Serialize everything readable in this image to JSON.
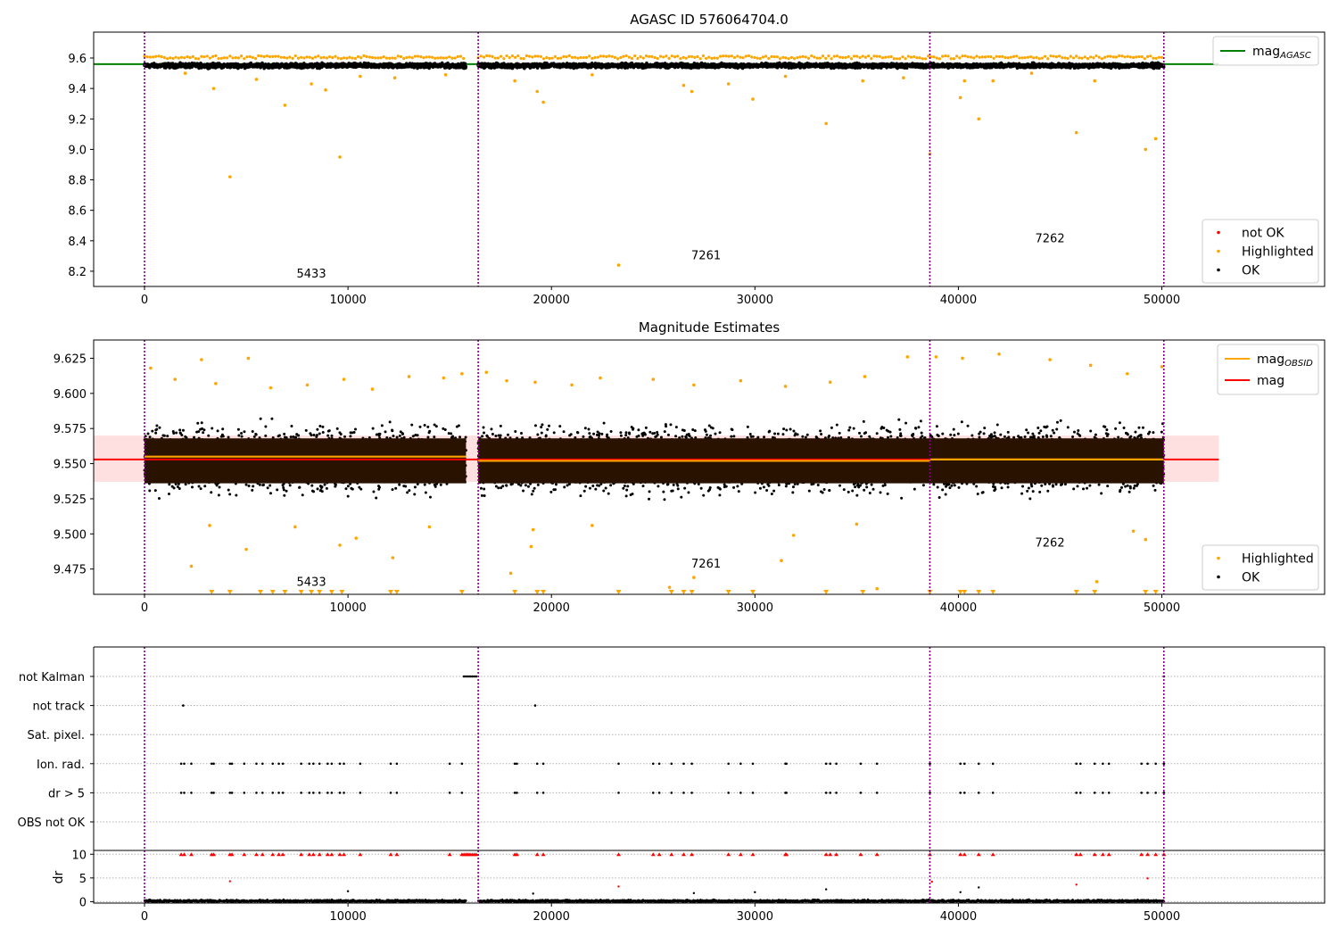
{
  "chart_data": [
    {
      "type": "scatter",
      "title": "AGASC ID 576064704.0",
      "xlim": [
        -2500,
        58000
      ],
      "ylim": [
        8.1,
        9.77
      ],
      "x_ticks": [
        0,
        10000,
        20000,
        30000,
        40000,
        50000
      ],
      "y_ticks": [
        8.2,
        8.4,
        8.6,
        8.8,
        9.0,
        9.2,
        9.4,
        9.6
      ],
      "y_decimals": 1,
      "grid": false,
      "obs_boundaries": [
        0,
        16400,
        38600,
        50100
      ],
      "obs_labels": [
        {
          "text": "5433",
          "x": 8200,
          "y": 8.16
        },
        {
          "text": "7261",
          "x": 27600,
          "y": 8.28
        },
        {
          "text": "7262",
          "x": 44500,
          "y": 8.39
        }
      ],
      "hlines": [
        {
          "name": "mag_AGASC",
          "y": 9.56,
          "x0": -2500,
          "x1": 52800,
          "color": "#008000"
        }
      ],
      "series": [
        {
          "name": "not OK",
          "color": "#ff0000",
          "x_ranges": [],
          "y_center": 9.55,
          "y_spread": 0.0
        },
        {
          "name": "Highlighted",
          "color": "#ffa500",
          "points": [
            [
              4200,
              8.82
            ],
            [
              9600,
              8.95
            ],
            [
              6900,
              9.29
            ],
            [
              3400,
              9.4
            ],
            [
              8200,
              9.43
            ],
            [
              8900,
              9.39
            ],
            [
              2000,
              9.5
            ],
            [
              5500,
              9.46
            ],
            [
              10600,
              9.48
            ],
            [
              12300,
              9.47
            ],
            [
              14800,
              9.49
            ],
            [
              19300,
              9.38
            ],
            [
              19600,
              9.31
            ],
            [
              23300,
              8.24
            ],
            [
              26500,
              9.42
            ],
            [
              26900,
              9.38
            ],
            [
              28700,
              9.43
            ],
            [
              29900,
              9.33
            ],
            [
              33500,
              9.17
            ],
            [
              35300,
              9.45
            ],
            [
              38600,
              8.97
            ],
            [
              40100,
              9.34
            ],
            [
              40300,
              9.45
            ],
            [
              41000,
              9.2
            ],
            [
              41700,
              9.45
            ],
            [
              45800,
              9.11
            ],
            [
              46700,
              9.45
            ],
            [
              49200,
              9.0
            ],
            [
              49700,
              9.07
            ],
            [
              18200,
              9.45
            ],
            [
              22000,
              9.49
            ],
            [
              31500,
              9.48
            ],
            [
              37300,
              9.47
            ],
            [
              43600,
              9.5
            ]
          ]
        },
        {
          "name": "OK",
          "color": "#000000",
          "x_ranges": [
            [
              0,
              15800
            ],
            [
              16400,
              50100
            ]
          ],
          "y_center": 9.55,
          "y_spread": 0.03
        }
      ],
      "legend_upper": {
        "position": "upper right",
        "entries": [
          {
            "label": "mag",
            "sub": "AGASC",
            "color": "#008000"
          }
        ]
      },
      "legend_lower": {
        "position": "lower right",
        "entries": [
          {
            "label": "not OK",
            "color": "#ff0000"
          },
          {
            "label": "Highlighted",
            "color": "#ffa500"
          },
          {
            "label": "OK",
            "color": "#000000"
          }
        ]
      }
    },
    {
      "type": "scatter",
      "title": "Magnitude Estimates",
      "xlim": [
        -2500,
        58000
      ],
      "ylim": [
        9.457,
        9.638
      ],
      "x_ticks": [
        0,
        10000,
        20000,
        30000,
        40000,
        50000
      ],
      "y_ticks": [
        9.475,
        9.5,
        9.525,
        9.55,
        9.575,
        9.6,
        9.625
      ],
      "y_decimals": 3,
      "grid": false,
      "obs_boundaries": [
        0,
        16400,
        38600,
        50100
      ],
      "obs_labels": [
        {
          "text": "5433",
          "x": 8200,
          "y": 9.463
        },
        {
          "text": "7261",
          "x": 27600,
          "y": 9.476
        },
        {
          "text": "7262",
          "x": 44500,
          "y": 9.491
        }
      ],
      "mag_line": {
        "name": "mag",
        "y": 9.553,
        "x0": -2500,
        "x1": 52800,
        "band": [
          9.537,
          9.57
        ],
        "color": "#ff0000"
      },
      "obsid_lines": [
        {
          "x0": 0,
          "x1": 15800,
          "y": 9.555
        },
        {
          "x0": 16400,
          "x1": 38600,
          "y": 9.552
        },
        {
          "x0": 38600,
          "x1": 50100,
          "y": 9.553
        }
      ],
      "series": [
        {
          "name": "Highlighted",
          "color": "#ffa500",
          "points": [
            [
              300,
              9.618
            ],
            [
              1500,
              9.61
            ],
            [
              2800,
              9.624
            ],
            [
              3500,
              9.607
            ],
            [
              5100,
              9.625
            ],
            [
              6200,
              9.604
            ],
            [
              8000,
              9.606
            ],
            [
              9800,
              9.61
            ],
            [
              11200,
              9.603
            ],
            [
              13000,
              9.612
            ],
            [
              14700,
              9.611
            ],
            [
              15600,
              9.614
            ],
            [
              16800,
              9.615
            ],
            [
              17800,
              9.609
            ],
            [
              19200,
              9.608
            ],
            [
              21000,
              9.606
            ],
            [
              22400,
              9.611
            ],
            [
              25000,
              9.61
            ],
            [
              27000,
              9.606
            ],
            [
              29300,
              9.609
            ],
            [
              31500,
              9.605
            ],
            [
              33700,
              9.608
            ],
            [
              35400,
              9.612
            ],
            [
              37500,
              9.626
            ],
            [
              38900,
              9.626
            ],
            [
              40200,
              9.625
            ],
            [
              42000,
              9.628
            ],
            [
              44500,
              9.624
            ],
            [
              46500,
              9.62
            ],
            [
              48300,
              9.614
            ],
            [
              50000,
              9.619
            ],
            [
              2300,
              9.477
            ],
            [
              3200,
              9.506
            ],
            [
              5000,
              9.489
            ],
            [
              7400,
              9.505
            ],
            [
              9600,
              9.492
            ],
            [
              10400,
              9.497
            ],
            [
              12200,
              9.483
            ],
            [
              14000,
              9.505
            ],
            [
              19000,
              9.491
            ],
            [
              19100,
              9.503
            ],
            [
              18000,
              9.472
            ],
            [
              25800,
              9.462
            ],
            [
              27000,
              9.469
            ],
            [
              31300,
              9.481
            ],
            [
              31900,
              9.499
            ],
            [
              36000,
              9.461
            ],
            [
              46800,
              9.466
            ],
            [
              48600,
              9.502
            ],
            [
              49200,
              9.496
            ],
            [
              22000,
              9.506
            ],
            [
              35000,
              9.507
            ]
          ]
        },
        {
          "name": "OK",
          "color": "#000000",
          "x_ranges": [
            [
              0,
              15800
            ],
            [
              16400,
              50100
            ]
          ]
        }
      ],
      "below_markers_x": [
        3300,
        4200,
        5700,
        6300,
        6900,
        7700,
        8200,
        8600,
        9200,
        9700,
        12100,
        12400,
        15600,
        18200,
        19300,
        19600,
        23300,
        25900,
        26500,
        26900,
        28700,
        29900,
        33500,
        35300,
        38600,
        40100,
        40300,
        41000,
        41700,
        45800,
        46700,
        49200,
        49700
      ],
      "legend_upper": {
        "position": "upper right",
        "entries": [
          {
            "label": "mag",
            "sub": "OBSID",
            "color": "#ffa500"
          },
          {
            "label": "mag",
            "color": "#ff0000"
          }
        ]
      },
      "legend_lower": {
        "position": "lower right",
        "entries": [
          {
            "label": "Highlighted",
            "color": "#ffa500"
          },
          {
            "label": "OK",
            "color": "#000000"
          }
        ]
      }
    },
    {
      "type": "scatter",
      "title": "",
      "xlim": [
        -2500,
        58000
      ],
      "categories": [
        "not Kalman",
        "not track",
        "Sat. pixel.",
        "Ion. rad.",
        "dr > 5",
        "OBS not OK"
      ],
      "flags": {
        "not Kalman": [
          15700,
          15800,
          15900,
          16000,
          16100,
          16200,
          16300,
          50100
        ],
        "not track": [
          1900,
          19200
        ],
        "Sat. pixel.": [],
        "Ion. rad.": [
          1800,
          1950,
          2300,
          3300,
          3400,
          4200,
          4300,
          4900,
          5500,
          5800,
          6300,
          6600,
          6800,
          7700,
          8100,
          8300,
          8600,
          9000,
          9200,
          9600,
          9800,
          10600,
          12100,
          12400,
          15000,
          15600,
          18200,
          18300,
          19300,
          19600,
          23300,
          25000,
          25300,
          25900,
          26500,
          26900,
          28700,
          29300,
          29900,
          31500,
          31550,
          33500,
          33700,
          34000,
          35200,
          36000,
          38600,
          40100,
          40300,
          41000,
          41700,
          45800,
          46000,
          46700,
          47100,
          47400,
          49000,
          49300,
          49700,
          50100
        ],
        "dr > 5": [
          1800,
          1950,
          2300,
          3300,
          3400,
          4200,
          4300,
          4900,
          5500,
          5800,
          6300,
          6600,
          6800,
          7700,
          8100,
          8300,
          8600,
          9000,
          9200,
          9600,
          9800,
          10600,
          12100,
          12400,
          15000,
          15600,
          18200,
          18300,
          19300,
          19600,
          23300,
          25000,
          25300,
          25900,
          26500,
          26900,
          28700,
          29300,
          29900,
          31500,
          31550,
          33500,
          33700,
          34000,
          35200,
          36000,
          38600,
          40100,
          40300,
          41000,
          41700,
          45800,
          46000,
          46700,
          47100,
          47400,
          49000,
          49300,
          49700,
          50100
        ],
        "OBS not OK": []
      },
      "dr": {
        "ylabel": "dr",
        "ylim": [
          -0.3,
          10.8
        ],
        "y_ticks": [
          0,
          5,
          10
        ],
        "points_above": [
          1800,
          1950,
          2300,
          3300,
          3400,
          4200,
          4300,
          4900,
          5500,
          5800,
          6300,
          6600,
          6800,
          7700,
          8100,
          8300,
          8600,
          9000,
          9200,
          9600,
          9800,
          10600,
          12100,
          12400,
          15000,
          15600,
          15700,
          15800,
          15900,
          16000,
          16100,
          16200,
          16300,
          18200,
          18300,
          19300,
          19600,
          23300,
          25000,
          25300,
          25900,
          26500,
          26900,
          28700,
          29300,
          29900,
          31500,
          31550,
          33500,
          33700,
          34000,
          35200,
          36000,
          38600,
          40100,
          40300,
          41000,
          41700,
          45800,
          46000,
          46700,
          47100,
          47400,
          49000,
          49300,
          49700,
          50100
        ],
        "red_points": [
          [
            4200,
            4.3
          ],
          [
            23300,
            3.2
          ],
          [
            45800,
            3.6
          ],
          [
            49300,
            4.9
          ],
          [
            38700,
            4.2
          ]
        ],
        "black_points": [
          [
            10000,
            2.2
          ],
          [
            30000,
            2.0
          ],
          [
            33500,
            2.6
          ],
          [
            41000,
            3.0
          ],
          [
            40100,
            2.0
          ],
          [
            27000,
            1.8
          ],
          [
            19100,
            1.7
          ]
        ]
      },
      "x_ticks": [
        0,
        10000,
        20000,
        30000,
        40000,
        50000
      ],
      "obs_boundaries": [
        0,
        16400,
        38600,
        50100
      ]
    }
  ]
}
